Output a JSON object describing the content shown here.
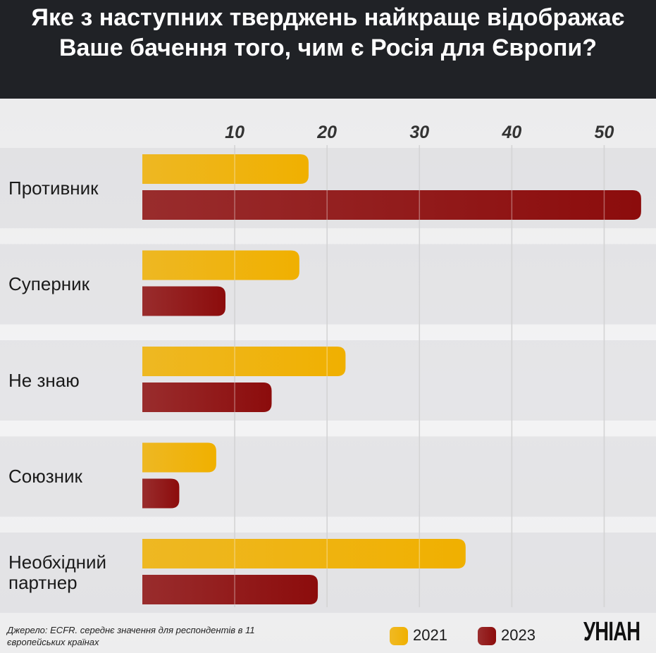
{
  "chart_data": {
    "type": "bar",
    "orientation": "horizontal",
    "title": "Яке з наступних тверджень найкраще відображає Ваше бачення того, чим є Росія для Європи?",
    "categories": [
      "Противник",
      "Суперник",
      "Не знаю",
      "Союзник",
      "Необхідний партнер"
    ],
    "series": [
      {
        "name": "2021",
        "color": "#f0b000",
        "values": [
          18,
          17,
          22,
          8,
          35
        ]
      },
      {
        "name": "2023",
        "color": "#8c0c0c",
        "values": [
          54,
          9,
          14,
          4,
          19
        ]
      }
    ],
    "xlim": [
      0,
      55
    ],
    "xticks": [
      10,
      20,
      30,
      40,
      50
    ],
    "grid": true,
    "legend": "bottom",
    "source": "Джерело: ECFR. середнє значення для респондентів в 11 європейських країнах",
    "logo": "УНІАН"
  }
}
